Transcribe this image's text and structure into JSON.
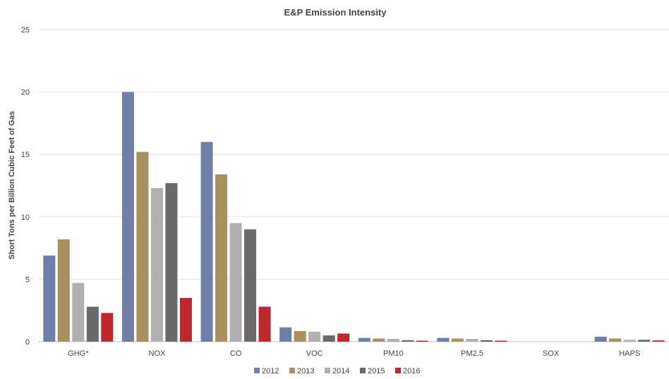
{
  "chart_data": {
    "type": "bar",
    "title": "E&P Emission Intensity",
    "xlabel": "",
    "ylabel": "Short Tons per Billion Cubic Feet of Gas",
    "ylim": [
      0,
      25
    ],
    "yticks": [
      0,
      5,
      10,
      15,
      20,
      25
    ],
    "grid": true,
    "legend_position": "bottom",
    "categories": [
      "GHG*",
      "NOX",
      "CO",
      "VOC",
      "PM10",
      "PM2.5",
      "SOX",
      "HAPS"
    ],
    "series": [
      {
        "name": "2012",
        "color": "#6f7fa8",
        "values": [
          6.9,
          20.0,
          16.0,
          1.15,
          0.3,
          0.3,
          0.0,
          0.4
        ]
      },
      {
        "name": "2013",
        "color": "#a9905f",
        "values": [
          8.2,
          15.2,
          13.4,
          0.85,
          0.25,
          0.25,
          0.0,
          0.25
        ]
      },
      {
        "name": "2014",
        "color": "#b0b0b0",
        "values": [
          4.7,
          12.3,
          9.5,
          0.8,
          0.22,
          0.22,
          0.0,
          0.15
        ]
      },
      {
        "name": "2015",
        "color": "#6a6a6a",
        "values": [
          2.8,
          12.7,
          9.0,
          0.5,
          0.12,
          0.12,
          0.0,
          0.15
        ]
      },
      {
        "name": "2016",
        "color": "#c0272d",
        "values": [
          2.3,
          3.5,
          2.8,
          0.65,
          0.08,
          0.08,
          0.0,
          0.1
        ]
      }
    ]
  }
}
